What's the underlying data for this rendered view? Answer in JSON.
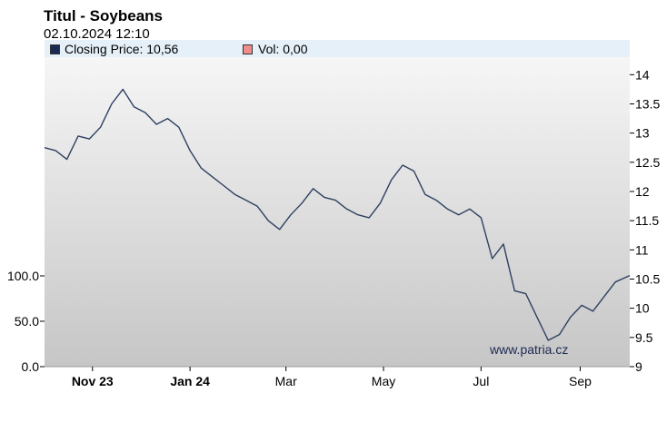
{
  "header": {
    "title": "Titul - Soybeans",
    "datetime": "02.10.2024 12:10"
  },
  "legend": {
    "price_label": "Closing Price: 10,56",
    "volume_label": "Vol: 0,00"
  },
  "watermark": "www.patria.cz",
  "colors": {
    "price_line": "#2e4060",
    "price_swatch": "#1b2a52",
    "volume_swatch": "#f08e8e",
    "plot_background_top": "#f4f4f4",
    "plot_background_bottom": "#c8c8c8"
  },
  "chart_data": {
    "type": "line",
    "title": "Titul - Soybeans",
    "right_axis": {
      "ticks": [
        "14",
        "13.5",
        "13",
        "12.5",
        "12",
        "11.5",
        "11",
        "10.5",
        "10",
        "9.5",
        "9"
      ],
      "ylim": [
        9,
        14.3
      ]
    },
    "left_axis": {
      "ticks": [
        "100.0",
        "50.0",
        "0.0"
      ],
      "ylim": [
        0,
        100
      ]
    },
    "x_ticks": [
      {
        "label": "Nov 23",
        "bold": true
      },
      {
        "label": "Jan 24",
        "bold": true
      },
      {
        "label": "Mar",
        "bold": false
      },
      {
        "label": "May",
        "bold": false
      },
      {
        "label": "Jul",
        "bold": false
      },
      {
        "label": "Sep",
        "bold": false
      }
    ],
    "series": [
      {
        "name": "Closing Price",
        "x": [
          "2023-10-02",
          "2023-10-09",
          "2023-10-16",
          "2023-10-23",
          "2023-10-30",
          "2023-11-06",
          "2023-11-13",
          "2023-11-20",
          "2023-11-27",
          "2023-12-04",
          "2023-12-11",
          "2023-12-18",
          "2023-12-25",
          "2024-01-01",
          "2024-01-08",
          "2024-01-15",
          "2024-01-22",
          "2024-01-29",
          "2024-02-05",
          "2024-02-12",
          "2024-02-19",
          "2024-02-26",
          "2024-03-04",
          "2024-03-11",
          "2024-03-18",
          "2024-03-25",
          "2024-04-01",
          "2024-04-08",
          "2024-04-15",
          "2024-04-22",
          "2024-04-29",
          "2024-05-06",
          "2024-05-13",
          "2024-05-20",
          "2024-05-27",
          "2024-06-03",
          "2024-06-10",
          "2024-06-17",
          "2024-06-24",
          "2024-07-01",
          "2024-07-08",
          "2024-07-15",
          "2024-07-22",
          "2024-07-29",
          "2024-08-05",
          "2024-08-12",
          "2024-08-19",
          "2024-08-26",
          "2024-09-02",
          "2024-09-09",
          "2024-09-16",
          "2024-09-23",
          "2024-10-02"
        ],
        "values": [
          12.75,
          12.7,
          12.55,
          12.95,
          12.9,
          13.1,
          13.5,
          13.75,
          13.45,
          13.35,
          13.15,
          13.25,
          13.1,
          12.7,
          12.4,
          12.25,
          12.1,
          11.95,
          11.85,
          11.75,
          11.5,
          11.35,
          11.6,
          11.8,
          12.05,
          11.9,
          11.85,
          11.7,
          11.6,
          11.55,
          11.8,
          12.2,
          12.45,
          12.35,
          11.95,
          11.85,
          11.7,
          11.6,
          11.7,
          11.55,
          10.85,
          11.1,
          10.3,
          10.25,
          9.85,
          9.45,
          9.55,
          9.85,
          10.05,
          9.95,
          10.2,
          10.45,
          10.56
        ]
      }
    ],
    "grid": false,
    "legend_position": "top-left"
  }
}
